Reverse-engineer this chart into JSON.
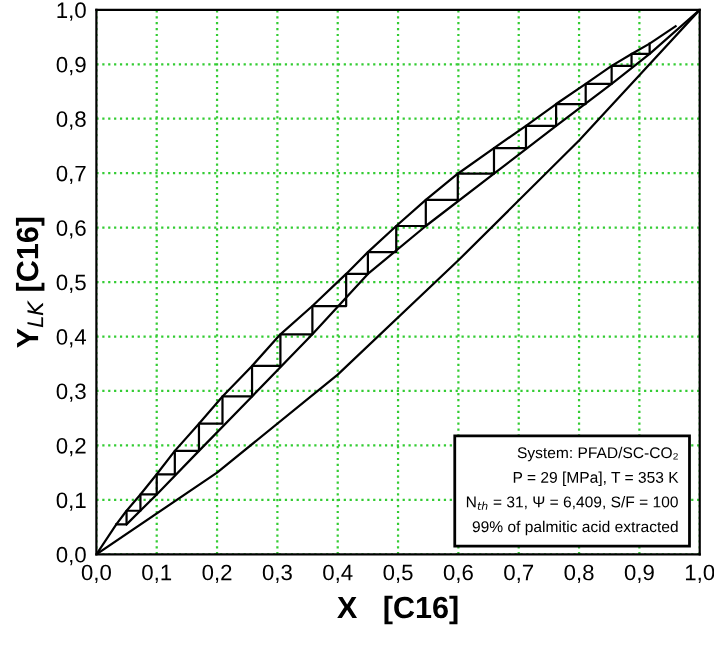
{
  "chart_data": {
    "type": "line",
    "xlabel": "X   [C16]",
    "ylabel": "Y$_{LK}$ [C16]",
    "xlim": [
      0,
      1
    ],
    "ylim": [
      0,
      1
    ],
    "xticks": [
      {
        "value": 0,
        "label": "0,0"
      },
      {
        "value": 0.1,
        "label": "0,1"
      },
      {
        "value": 0.2,
        "label": "0,2"
      },
      {
        "value": 0.3,
        "label": "0,3"
      },
      {
        "value": 0.4,
        "label": "0,4"
      },
      {
        "value": 0.5,
        "label": "0,5"
      },
      {
        "value": 0.6,
        "label": "0,6"
      },
      {
        "value": 0.7,
        "label": "0,7"
      },
      {
        "value": 0.8,
        "label": "0,8"
      },
      {
        "value": 0.9,
        "label": "0,9"
      },
      {
        "value": 1,
        "label": "1,0"
      }
    ],
    "yticks": [
      {
        "value": 0,
        "label": "0,0"
      },
      {
        "value": 0.1,
        "label": "0,1"
      },
      {
        "value": 0.2,
        "label": "0,2"
      },
      {
        "value": 0.3,
        "label": "0,3"
      },
      {
        "value": 0.4,
        "label": "0,4"
      },
      {
        "value": 0.5,
        "label": "0,5"
      },
      {
        "value": 0.6,
        "label": "0,6"
      },
      {
        "value": 0.7,
        "label": "0,7"
      },
      {
        "value": 0.8,
        "label": "0,8"
      },
      {
        "value": 0.9,
        "label": "0,9"
      },
      {
        "value": 1,
        "label": "1,0"
      }
    ],
    "grid": true,
    "legend": false,
    "marker": "none",
    "line_style": "solid",
    "series": [
      {
        "color": "#000000",
        "x": [
          0,
          0.033,
          0.05,
          0.073,
          0.1,
          0.13,
          0.17,
          0.209,
          0.258,
          0.305,
          0.358,
          0.414,
          0.45,
          0.497,
          0.546,
          0.599,
          0.659,
          0.712,
          0.762,
          0.811,
          0.854,
          0.887,
          0.917,
          0.96
        ],
        "values": [
          0,
          0.055,
          0.08,
          0.11,
          0.147,
          0.19,
          0.24,
          0.29,
          0.346,
          0.404,
          0.456,
          0.515,
          0.555,
          0.603,
          0.651,
          0.699,
          0.746,
          0.787,
          0.827,
          0.864,
          0.897,
          0.919,
          0.938,
          0.97
        ]
      },
      {
        "color": "#000000",
        "x": [
          0.05,
          0.1,
          0.17,
          0.258,
          0.358,
          0.45,
          0.546,
          0.659,
          0.762,
          0.854,
          0.917,
          1
        ],
        "values": [
          0.055,
          0.11,
          0.19,
          0.29,
          0.404,
          0.515,
          0.603,
          0.699,
          0.787,
          0.864,
          0.919,
          1
        ]
      },
      {
        "color": "#000000",
        "x": [
          0,
          0.2,
          0.4,
          0.6,
          0.8,
          0.9,
          1
        ],
        "values": [
          0,
          0.15,
          0.33,
          0.54,
          0.76,
          0.88,
          1
        ]
      },
      {
        "color": "#000000",
        "type": "step",
        "x": [
          0.033,
          0.05,
          0.073,
          0.1,
          0.13,
          0.17,
          0.209,
          0.258,
          0.305,
          0.358,
          0.414,
          0.45,
          0.497,
          0.546,
          0.599,
          0.659,
          0.712,
          0.762,
          0.811,
          0.854,
          0.887,
          0.917
        ],
        "values": [
          0.055,
          0.08,
          0.11,
          0.147,
          0.19,
          0.24,
          0.29,
          0.346,
          0.404,
          0.456,
          0.515,
          0.555,
          0.603,
          0.651,
          0.699,
          0.746,
          0.787,
          0.827,
          0.864,
          0.897,
          0.919,
          0.938
        ]
      }
    ],
    "annotations": [
      "System: PFAD/SC-CO₂",
      "P = 29 [MPa], T = 353 K",
      "N$_{th}$ = 31, Ψ = 6,409, S/F = 100",
      "99% of palmitic acid extracted"
    ]
  }
}
